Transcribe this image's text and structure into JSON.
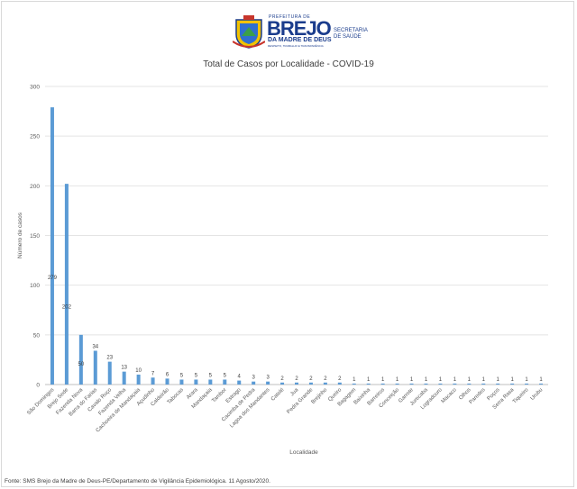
{
  "logo": {
    "small": "PREFEITURA DE",
    "big": "BREJO",
    "sub": "DA MADRE DE DEUS",
    "tiny": "RESPEITO, TRABALHO E TRANSPARÊNCIA",
    "dept_line1": "SECRETARIA",
    "dept_line2": "DE SAÚDE"
  },
  "footer": "Fonte: SMS Brejo da Madre de Deus-PE/Departamento de Vigilância Epidemiológica. 11 Agosto/2020.",
  "chart_data": {
    "type": "bar",
    "title": "Total de Casos por Localidade - COVID-19",
    "xlabel": "Localidade",
    "ylabel": "Número de casos",
    "ylim": [
      0,
      300
    ],
    "yticks": [
      0,
      50,
      100,
      150,
      200,
      250,
      300
    ],
    "grid": true,
    "bar_color": "#5b9bd5",
    "categories": [
      "São Domingos",
      "Brejo Sede",
      "Fazenda Nova",
      "Barra do Farias",
      "Cavalo Ruço",
      "Fazenda Velha",
      "Cachoeira de Mandaçaia",
      "Açudinho",
      "Caldeirão",
      "Tabocas",
      "Arara",
      "Mandaçaia",
      "Tambor",
      "Estrago",
      "Cacimba de Pedra",
      "Lagoa dos Mandantes",
      "Catolé",
      "Jua",
      "Pedra Grande",
      "Brejinho",
      "Queiro",
      "Bagagem",
      "Baixinha",
      "Barreiros",
      "Conceição",
      "Garrote",
      "Jurecaba",
      "Logradouro",
      "Macaco",
      "Olhos",
      "Paredes",
      "Poços",
      "Serra Rasa",
      "Tiqueiro",
      "Urubu"
    ],
    "values": [
      279,
      202,
      50,
      34,
      23,
      13,
      10,
      7,
      6,
      5,
      5,
      5,
      5,
      4,
      3,
      3,
      2,
      2,
      2,
      2,
      2,
      1,
      1,
      1,
      1,
      1,
      1,
      1,
      1,
      1,
      1,
      1,
      1,
      1,
      1
    ],
    "labels": [
      "279",
      "202",
      "50",
      "34",
      "23",
      "13",
      "10",
      "7",
      "6",
      "5",
      "5",
      "5",
      "5",
      "4",
      "3",
      "3",
      "2",
      "2",
      "2",
      "2",
      "2",
      "1",
      "1",
      "1",
      "1",
      "1",
      "1",
      "1",
      "1",
      "1",
      "1",
      "1",
      "1",
      "1",
      "1"
    ]
  }
}
